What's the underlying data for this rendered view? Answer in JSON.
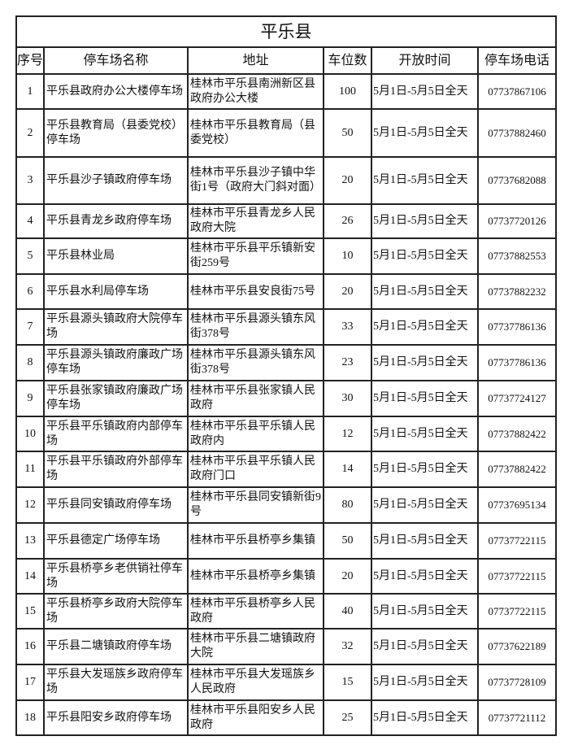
{
  "title": "平乐县",
  "headers": [
    "序号",
    "停车场名称",
    "地址",
    "车位数",
    "开放时间",
    "停车场电话"
  ],
  "rows": [
    {
      "no": "1",
      "name": "平乐县政府办公大楼停车场",
      "address": "桂林市平乐县南洲新区县政府办公大楼",
      "spaces": "100",
      "hours": "5月1日-5月5日全天",
      "phone": "07737867106"
    },
    {
      "no": "2",
      "name": "平乐县教育局（县委党校）\n停车场",
      "address": "桂林市平乐县教育局（县委党校）",
      "spaces": "50",
      "hours": "5月1日-5月5日全天",
      "phone": "07737882460"
    },
    {
      "no": "3",
      "name": "平乐县沙子镇政府停车场",
      "address": "桂林市平乐县沙子镇中华街1号（政府大门斜对面）",
      "spaces": "20",
      "hours": "5月1日-5月5日全天",
      "phone": "07737682088"
    },
    {
      "no": "4",
      "name": "平乐县青龙乡政府停车场",
      "address": "桂林市平乐县青龙乡人民政府大院",
      "spaces": "26",
      "hours": "5月1日-5月5日全天",
      "phone": "07737720126"
    },
    {
      "no": "5",
      "name": "平乐县林业局",
      "address": "桂林市平乐县平乐镇新安街259号",
      "spaces": "10",
      "hours": "5月1日-5月5日全天",
      "phone": "07737882553"
    },
    {
      "no": "6",
      "name": "平乐县水利局停车场",
      "address": "桂林市平乐县安良街75号",
      "spaces": "20",
      "hours": "5月1日-5月5日全天",
      "phone": "07737882232"
    },
    {
      "no": "7",
      "name": "平乐县源头镇政府大院停车场",
      "address": "桂林市平乐县源头镇东风街378号",
      "spaces": "33",
      "hours": "5月1日-5月5日全天",
      "phone": "07737786136"
    },
    {
      "no": "8",
      "name": "平乐县源头镇政府廉政广场停车场",
      "address": "桂林市平乐县源头镇东风街378号",
      "spaces": "23",
      "hours": "5月1日-5月5日全天",
      "phone": "07737786136"
    },
    {
      "no": "9",
      "name": "平乐县张家镇政府廉政广场停车场",
      "address": "桂林市平乐县张家镇人民政府",
      "spaces": "30",
      "hours": "5月1日-5月5日全天",
      "phone": "07737724127"
    },
    {
      "no": "10",
      "name": "平乐县平乐镇政府内部停车场",
      "address": "桂林市平乐县平乐镇人民政府内",
      "spaces": "12",
      "hours": "5月1日-5月5日全天",
      "phone": "07737882422"
    },
    {
      "no": "11",
      "name": "平乐县平乐镇政府外部停车场",
      "address": "桂林市平乐县平乐镇人民政府门口",
      "spaces": "14",
      "hours": "5月1日-5月5日全天",
      "phone": "07737882422"
    },
    {
      "no": "12",
      "name": "平乐县同安镇政府停车场",
      "address": "桂林市平乐县同安镇新街9号",
      "spaces": "80",
      "hours": "5月1日-5月5日全天",
      "phone": "07737695134"
    },
    {
      "no": "13",
      "name": "平乐县德定广场停车场",
      "address": "桂林市平乐县桥亭乡集镇",
      "spaces": "50",
      "hours": "5月1日-5月5日全天",
      "phone": "07737722115"
    },
    {
      "no": "14",
      "name": "平乐县桥亭乡老供销社停车场",
      "address": "桂林市平乐县桥亭乡集镇",
      "spaces": "20",
      "hours": "5月1日-5月5日全天",
      "phone": "07737722115"
    },
    {
      "no": "15",
      "name": "平乐县桥亭乡政府大院停车场",
      "address": "桂林市平乐县桥亭乡人民政府",
      "spaces": "40",
      "hours": "5月1日-5月5日全天",
      "phone": "07737722115"
    },
    {
      "no": "16",
      "name": "平乐县二塘镇政府停车场",
      "address": "桂林市平乐县二塘镇政府大院",
      "spaces": "32",
      "hours": "5月1日-5月5日全天",
      "phone": "07737622189"
    },
    {
      "no": "17",
      "name": "平乐县大发瑶族乡政府停车场",
      "address": "桂林市平乐县大发瑶族乡人民政府",
      "spaces": "15",
      "hours": "5月1日-5月5日全天",
      "phone": "07737728109"
    },
    {
      "no": "18",
      "name": "平乐县阳安乡政府停车场",
      "address": "桂林市平乐县阳安乡人民政府",
      "spaces": "25",
      "hours": "5月1日-5月5日全天",
      "phone": "07737721112"
    }
  ]
}
